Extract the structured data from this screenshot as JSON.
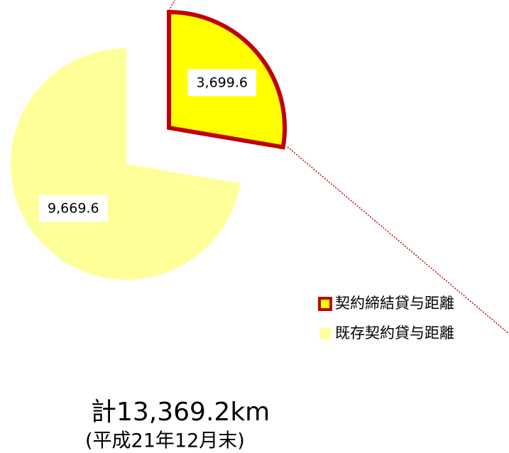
{
  "chart_data": {
    "type": "pie",
    "categories": [
      "契約締結貸与距離",
      "既存契約貸与距離"
    ],
    "values": [
      3699.6,
      9669.6
    ],
    "value_labels": [
      "3,699.6",
      "9,669.6"
    ],
    "colors": [
      "#ffff00",
      "#ffff99"
    ],
    "edge_colors": [
      "#c00000",
      null
    ],
    "title": "計13,369.2km",
    "subtitle": "(平成21年12月末)"
  }
}
